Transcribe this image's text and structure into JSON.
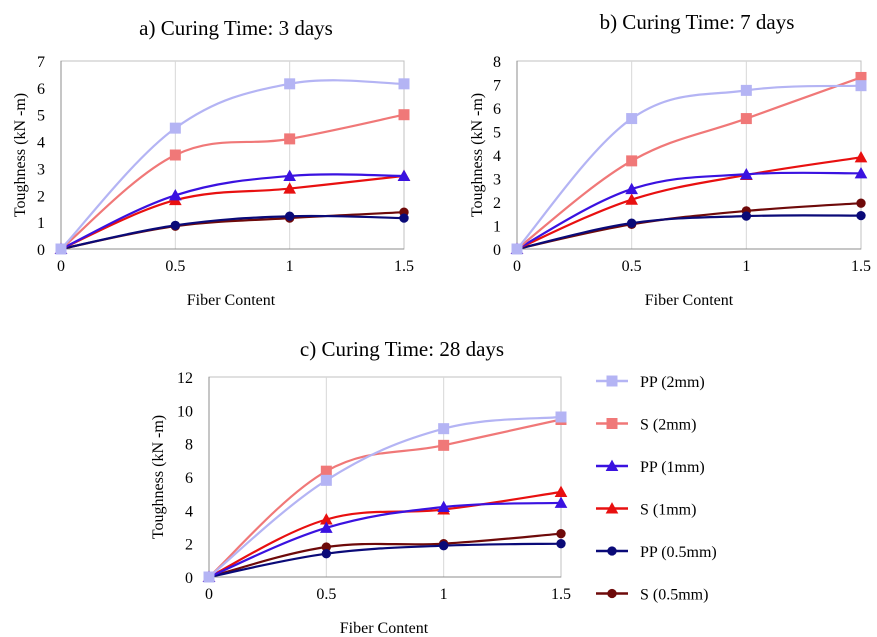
{
  "series_styles": [
    {
      "name": "PP (2mm)",
      "color": "#b4b4f4",
      "marker": "square-marker"
    },
    {
      "name": "S (2mm)",
      "color": "#f07878",
      "marker": "square-marker"
    },
    {
      "name": "PP (1mm)",
      "color": "#3a12e0",
      "marker": "triangle-marker"
    },
    {
      "name": "S (1mm)",
      "color": "#e81010",
      "marker": "triangle-marker"
    },
    {
      "name": "PP (0.5mm)",
      "color": "#0a0a78",
      "marker": "circle-marker"
    },
    {
      "name": "S (0.5mm)",
      "color": "#6e0a0a",
      "marker": "circle-marker"
    }
  ],
  "chart_data": [
    {
      "type": "line",
      "title": "a) Curing Time: 3 days",
      "xlabel": "Fiber Content",
      "ylabel": "Toughness (kN -m)",
      "x": [
        0,
        0.5,
        1,
        1.5
      ],
      "x_ticks": [
        "0",
        "0.5",
        "1",
        "1.5"
      ],
      "xlim": [
        0,
        1.5
      ],
      "ylim": [
        0,
        7
      ],
      "y_ticks": [
        "0",
        "1",
        "2",
        "3",
        "4",
        "5",
        "6",
        "7"
      ],
      "grid": "vertical",
      "series": [
        {
          "name": "PP (2mm)",
          "values": [
            0,
            4.5,
            6.15,
            6.15
          ]
        },
        {
          "name": "S (2mm)",
          "values": [
            0,
            3.5,
            4.1,
            5.0
          ]
        },
        {
          "name": "PP (1mm)",
          "values": [
            0,
            2.0,
            2.72,
            2.72
          ]
        },
        {
          "name": "S (1mm)",
          "values": [
            0,
            1.82,
            2.25,
            2.72
          ]
        },
        {
          "name": "PP (0.5mm)",
          "values": [
            0,
            0.88,
            1.22,
            1.15
          ]
        },
        {
          "name": "S (0.5mm)",
          "values": [
            0,
            0.85,
            1.15,
            1.37
          ]
        }
      ]
    },
    {
      "type": "line",
      "title": "b) Curing Time: 7 days",
      "xlabel": "Fiber Content",
      "ylabel": "Toughness (kN -m)",
      "x": [
        0,
        0.5,
        1,
        1.5
      ],
      "x_ticks": [
        "0",
        "0.5",
        "1",
        "1.5"
      ],
      "xlim": [
        0,
        1.5
      ],
      "ylim": [
        0,
        8
      ],
      "y_ticks": [
        "0",
        "1",
        "2",
        "3",
        "4",
        "5",
        "6",
        "7",
        "8"
      ],
      "grid": "vertical",
      "series": [
        {
          "name": "PP (2mm)",
          "values": [
            0,
            5.55,
            6.75,
            6.95
          ]
        },
        {
          "name": "S (2mm)",
          "values": [
            0,
            3.75,
            5.55,
            7.3
          ]
        },
        {
          "name": "PP (1mm)",
          "values": [
            0,
            2.55,
            3.18,
            3.22
          ]
        },
        {
          "name": "S (1mm)",
          "values": [
            0,
            2.1,
            3.15,
            3.9
          ]
        },
        {
          "name": "PP (0.5mm)",
          "values": [
            0,
            1.1,
            1.4,
            1.42
          ]
        },
        {
          "name": "S (0.5mm)",
          "values": [
            0,
            1.05,
            1.62,
            1.95
          ]
        }
      ]
    },
    {
      "type": "line",
      "title": "c) Curing Time: 28 days",
      "xlabel": "Fiber Content",
      "ylabel": "Toughness (kN -m)",
      "x": [
        0,
        0.5,
        1,
        1.5
      ],
      "x_ticks": [
        "0",
        "0.5",
        "1",
        "1.5"
      ],
      "xlim": [
        0,
        1.5
      ],
      "ylim": [
        0,
        12
      ],
      "y_ticks": [
        "0",
        "2",
        "4",
        "6",
        "8",
        "10",
        "12"
      ],
      "grid": "vertical",
      "legend": "right",
      "series": [
        {
          "name": "PP (2mm)",
          "values": [
            0,
            5.8,
            8.9,
            9.6
          ]
        },
        {
          "name": "S (2mm)",
          "values": [
            0,
            6.35,
            7.9,
            9.45
          ]
        },
        {
          "name": "PP (1mm)",
          "values": [
            0,
            2.95,
            4.2,
            4.45
          ]
        },
        {
          "name": "S (1mm)",
          "values": [
            0,
            3.45,
            4.05,
            5.1
          ]
        },
        {
          "name": "PP (0.5mm)",
          "values": [
            0,
            1.4,
            1.88,
            2.0
          ]
        },
        {
          "name": "S (0.5mm)",
          "values": [
            0,
            1.8,
            2.0,
            2.6
          ]
        }
      ]
    }
  ]
}
